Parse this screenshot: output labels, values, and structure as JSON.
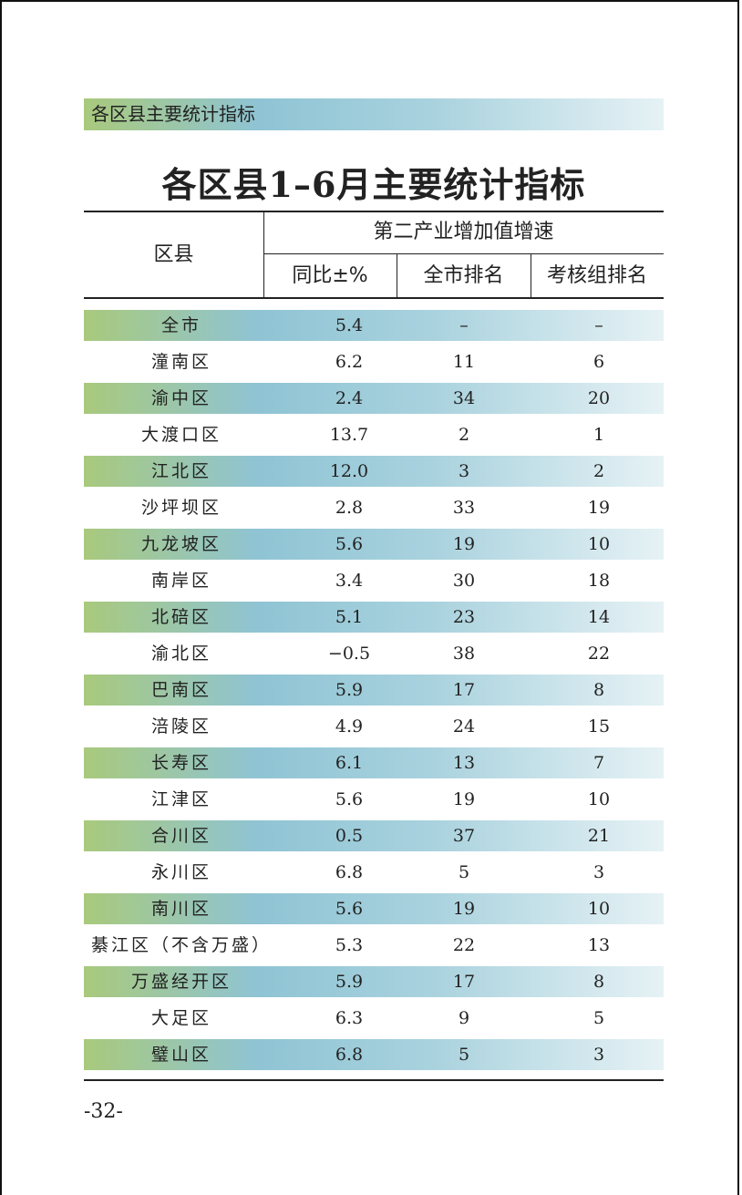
{
  "header": {
    "title": "各区县主要统计指标"
  },
  "title": "各区县1–6月主要统计指标",
  "table": {
    "columns": {
      "district": "区县",
      "group": "第二产业增加值增速",
      "sub": [
        "同比±%",
        "全市排名",
        "考核组排名"
      ]
    },
    "rows": [
      [
        "全市",
        "5.4",
        "–",
        "–"
      ],
      [
        "潼南区",
        "6.2",
        "11",
        "6"
      ],
      [
        "渝中区",
        "2.4",
        "34",
        "20"
      ],
      [
        "大渡口区",
        "13.7",
        "2",
        "1"
      ],
      [
        "江北区",
        "12.0",
        "3",
        "2"
      ],
      [
        "沙坪坝区",
        "2.8",
        "33",
        "19"
      ],
      [
        "九龙坡区",
        "5.6",
        "19",
        "10"
      ],
      [
        "南岸区",
        "3.4",
        "30",
        "18"
      ],
      [
        "北碚区",
        "5.1",
        "23",
        "14"
      ],
      [
        "渝北区",
        "−0.5",
        "38",
        "22"
      ],
      [
        "巴南区",
        "5.9",
        "17",
        "8"
      ],
      [
        "涪陵区",
        "4.9",
        "24",
        "15"
      ],
      [
        "长寿区",
        "6.1",
        "13",
        "7"
      ],
      [
        "江津区",
        "5.6",
        "19",
        "10"
      ],
      [
        "合川区",
        "0.5",
        "37",
        "21"
      ],
      [
        "永川区",
        "6.8",
        "5",
        "3"
      ],
      [
        "南川区",
        "5.6",
        "19",
        "10"
      ],
      [
        "綦江区（不含万盛）",
        "5.3",
        "22",
        "13"
      ],
      [
        "万盛经开区",
        "5.9",
        "17",
        "8"
      ],
      [
        "大足区",
        "6.3",
        "9",
        "5"
      ],
      [
        "璧山区",
        "6.8",
        "5",
        "3"
      ]
    ]
  },
  "footer": {
    "page_number": "-32-"
  }
}
